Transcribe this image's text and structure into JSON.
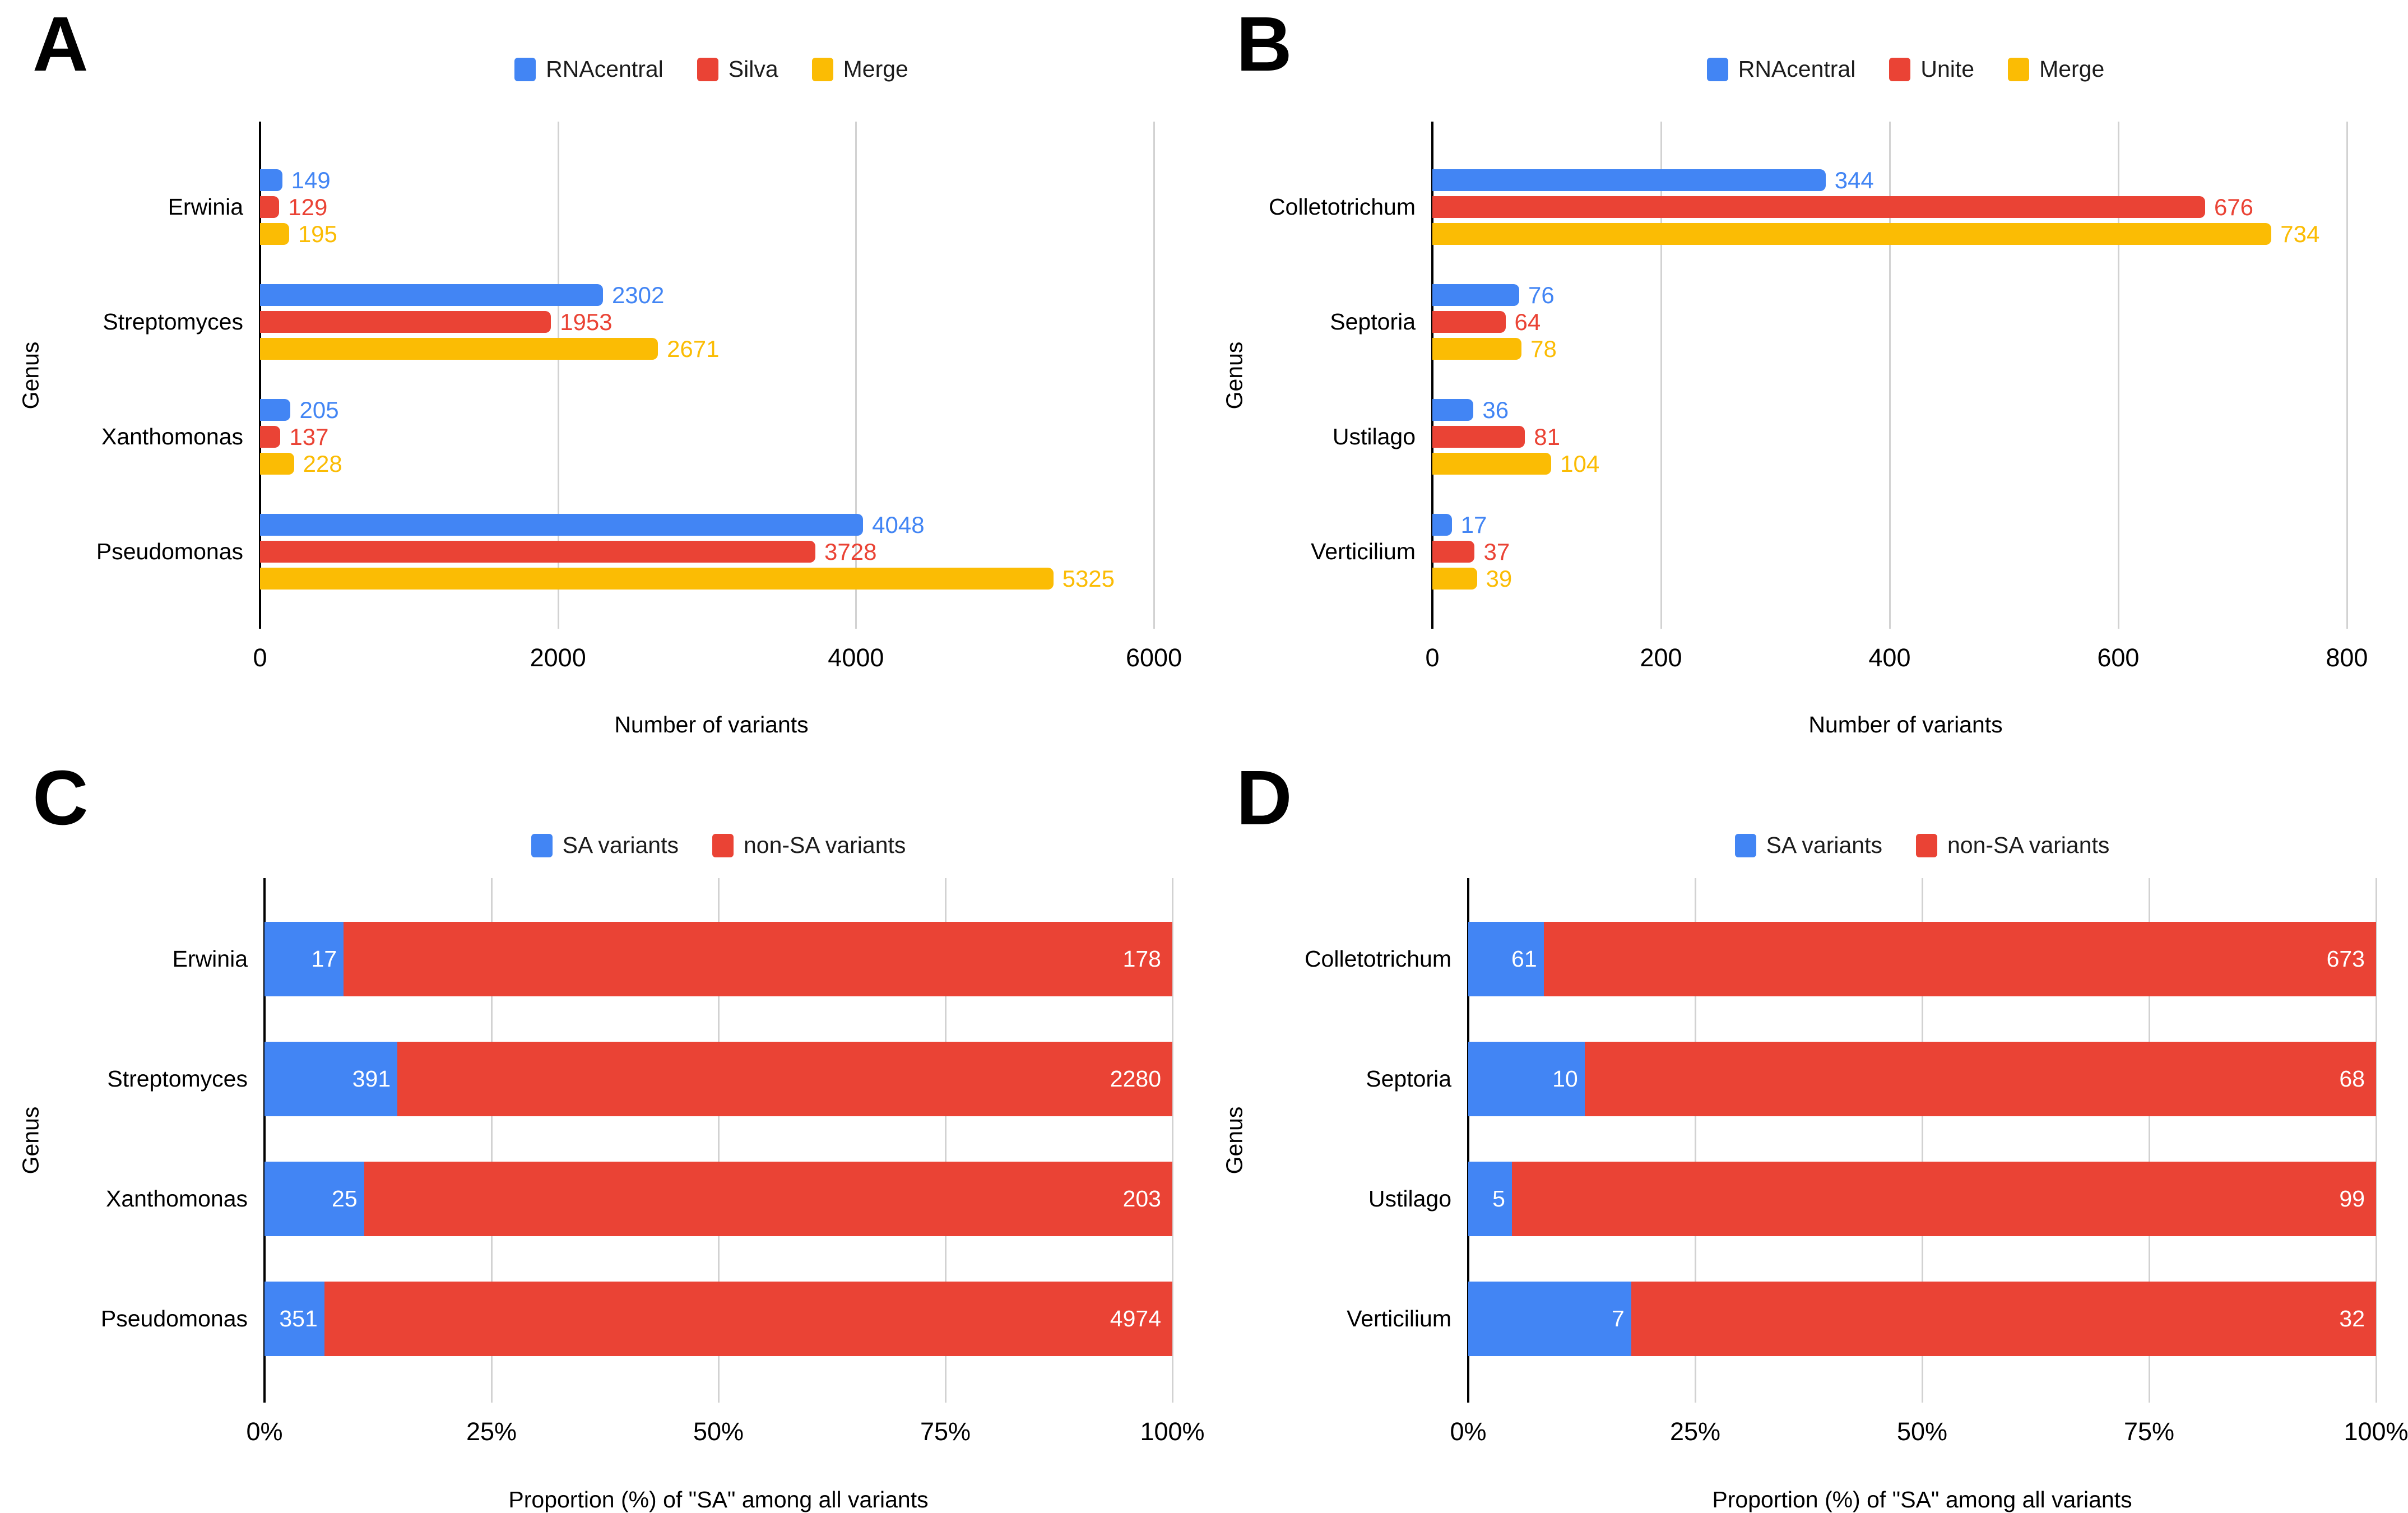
{
  "figure": {
    "background": "#ffffff"
  },
  "palette": {
    "blue": "#4285F4",
    "red": "#EA4335",
    "yellow": "#FBBC04",
    "text": "#000000",
    "gridline": "#d2d2d2",
    "annotation_white": "#ffffff"
  },
  "chart_data": [
    {
      "id": "A",
      "panel_label": "A",
      "type": "bar",
      "orientation": "horizontal",
      "legend_position": "top",
      "grid": "vertical-only",
      "xlabel": "Number of variants",
      "ylabel": "Genus",
      "xlim": [
        0,
        6000
      ],
      "xtick_values": [
        0,
        2000,
        4000,
        6000
      ],
      "xtick_labels": [
        "0",
        "2000",
        "4000",
        "6000"
      ],
      "categories": [
        "Erwinia",
        "Streptomyces",
        "Xanthomonas",
        "Pseudomonas"
      ],
      "series": [
        {
          "name": "RNAcentral",
          "color": "#4285F4",
          "values": [
            149,
            2302,
            205,
            4048
          ]
        },
        {
          "name": "Silva",
          "color": "#EA4335",
          "values": [
            129,
            1953,
            137,
            3728
          ]
        },
        {
          "name": "Merge",
          "color": "#FBBC04",
          "values": [
            195,
            2671,
            228,
            5325
          ]
        }
      ]
    },
    {
      "id": "B",
      "panel_label": "B",
      "type": "bar",
      "orientation": "horizontal",
      "legend_position": "top",
      "grid": "vertical-only",
      "xlabel": "Number of variants",
      "ylabel": "Genus",
      "xlim": [
        0,
        800
      ],
      "xtick_values": [
        0,
        200,
        400,
        600,
        800
      ],
      "xtick_labels": [
        "0",
        "200",
        "400",
        "600",
        "800"
      ],
      "categories": [
        "Colletotrichum",
        "Septoria",
        "Ustilago",
        "Verticilium"
      ],
      "series": [
        {
          "name": "RNAcentral",
          "color": "#4285F4",
          "values": [
            344,
            76,
            36,
            17
          ]
        },
        {
          "name": "Unite",
          "color": "#EA4335",
          "values": [
            676,
            64,
            81,
            37
          ]
        },
        {
          "name": "Merge",
          "color": "#FBBC04",
          "values": [
            734,
            78,
            104,
            39
          ]
        }
      ]
    },
    {
      "id": "C",
      "panel_label": "C",
      "type": "stacked-bar-100",
      "orientation": "horizontal",
      "legend_position": "top",
      "grid": "vertical-only",
      "xlabel": "Proportion (%) of \"SA\" among all variants",
      "ylabel": "Genus",
      "xlim": [
        0,
        100
      ],
      "xtick_values": [
        0,
        25,
        50,
        75,
        100
      ],
      "xtick_labels": [
        "0%",
        "25%",
        "50%",
        "75%",
        "100%"
      ],
      "categories": [
        "Erwinia",
        "Streptomyces",
        "Xanthomonas",
        "Pseudomonas"
      ],
      "annotation_text_color": "#ffffff",
      "series": [
        {
          "name": "SA variants",
          "color": "#4285F4",
          "values": [
            17,
            391,
            25,
            351
          ]
        },
        {
          "name": "non-SA variants",
          "color": "#EA4335",
          "values": [
            178,
            2280,
            203,
            4974
          ]
        }
      ]
    },
    {
      "id": "D",
      "panel_label": "D",
      "type": "stacked-bar-100",
      "orientation": "horizontal",
      "legend_position": "top",
      "grid": "vertical-only",
      "xlabel": "Proportion (%) of \"SA\" among all variants",
      "ylabel": "Genus",
      "xlim": [
        0,
        100
      ],
      "xtick_values": [
        0,
        25,
        50,
        75,
        100
      ],
      "xtick_labels": [
        "0%",
        "25%",
        "50%",
        "75%",
        "100%"
      ],
      "categories": [
        "Colletotrichum",
        "Septoria",
        "Ustilago",
        "Verticilium"
      ],
      "annotation_text_color": "#ffffff",
      "series": [
        {
          "name": "SA variants",
          "color": "#4285F4",
          "values": [
            61,
            10,
            5,
            7
          ]
        },
        {
          "name": "non-SA variants",
          "color": "#EA4335",
          "values": [
            673,
            68,
            99,
            32
          ]
        }
      ]
    }
  ]
}
